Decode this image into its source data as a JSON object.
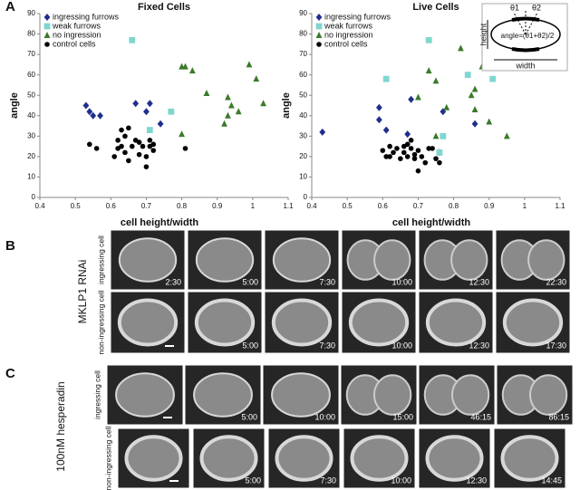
{
  "panel_labels": [
    "A",
    "B",
    "C"
  ],
  "chart_data": [
    {
      "type": "scatter",
      "title": "Fixed Cells",
      "xlabel": "cell height/width",
      "ylabel": "angle",
      "xlim": [
        0.4,
        1.1
      ],
      "ylim": [
        0,
        90
      ],
      "xticks": [
        0.4,
        0.5,
        0.6,
        0.7,
        0.8,
        0.9,
        1,
        1.1
      ],
      "yticks": [
        0,
        10,
        20,
        30,
        40,
        50,
        60,
        70,
        80,
        90
      ],
      "legend": "upper left",
      "series": [
        {
          "name": "ingressing furrows",
          "color": "#1f2f8c",
          "marker": "diamond",
          "x": [
            0.53,
            0.54,
            0.55,
            0.57,
            0.67,
            0.7,
            0.71,
            0.74
          ],
          "y": [
            45,
            42,
            40,
            40,
            46,
            42,
            46,
            36
          ]
        },
        {
          "name": "weak furrows",
          "color": "#7fd6d0",
          "marker": "square",
          "x": [
            0.66,
            0.71,
            0.77
          ],
          "y": [
            77,
            33,
            42
          ]
        },
        {
          "name": "no ingression",
          "color": "#3a7a2a",
          "marker": "triangle",
          "x": [
            0.8,
            0.81,
            0.8,
            0.83,
            0.87,
            0.92,
            0.93,
            0.93,
            0.94,
            0.96,
            0.99,
            1.01,
            1.03
          ],
          "y": [
            64,
            64,
            31,
            62,
            51,
            36,
            40,
            49,
            45,
            42,
            65,
            58,
            46
          ]
        },
        {
          "name": "control cells",
          "color": "#000000",
          "marker": "circle",
          "x": [
            0.54,
            0.56,
            0.61,
            0.62,
            0.62,
            0.63,
            0.63,
            0.64,
            0.64,
            0.65,
            0.65,
            0.66,
            0.67,
            0.68,
            0.68,
            0.69,
            0.7,
            0.7,
            0.71,
            0.71,
            0.72,
            0.72,
            0.81
          ],
          "y": [
            26,
            24,
            20,
            24,
            28,
            25,
            33,
            30,
            22,
            18,
            34,
            25,
            28,
            27,
            21,
            25,
            15,
            20,
            25,
            28,
            23,
            26,
            24
          ]
        }
      ]
    },
    {
      "type": "scatter",
      "title": "Live Cells",
      "xlabel": "cell height/width",
      "ylabel": "angle",
      "xlim": [
        0.4,
        1.1
      ],
      "ylim": [
        0,
        90
      ],
      "xticks": [
        0.4,
        0.5,
        0.6,
        0.7,
        0.8,
        0.9,
        1,
        1.1
      ],
      "yticks": [
        0,
        10,
        20,
        30,
        40,
        50,
        60,
        70,
        80,
        90
      ],
      "legend": "upper left",
      "annotations": [
        "θ1",
        "θ2",
        "height",
        "width",
        "angle=(θ1+θ2)/2"
      ],
      "series": [
        {
          "name": "ingressing furrows",
          "color": "#1f2f8c",
          "marker": "diamond",
          "x": [
            0.43,
            0.59,
            0.59,
            0.61,
            0.67,
            0.68,
            0.76,
            0.77,
            0.86
          ],
          "y": [
            32,
            44,
            38,
            33,
            31,
            48,
            22,
            42,
            36
          ]
        },
        {
          "name": "weak furrows",
          "color": "#7fd6d0",
          "marker": "square",
          "x": [
            0.61,
            0.73,
            0.76,
            0.77,
            0.84,
            0.91
          ],
          "y": [
            58,
            77,
            22,
            30,
            60,
            58
          ]
        },
        {
          "name": "no ingression",
          "color": "#3a7a2a",
          "marker": "triangle",
          "x": [
            0.7,
            0.73,
            0.75,
            0.75,
            0.78,
            0.82,
            0.85,
            0.86,
            0.86,
            0.88,
            0.9,
            0.95
          ],
          "y": [
            49,
            62,
            57,
            30,
            44,
            73,
            50,
            53,
            43,
            64,
            37,
            30
          ]
        },
        {
          "name": "control cells",
          "color": "#000000",
          "marker": "circle",
          "x": [
            0.6,
            0.61,
            0.62,
            0.62,
            0.63,
            0.64,
            0.65,
            0.66,
            0.66,
            0.67,
            0.67,
            0.68,
            0.68,
            0.69,
            0.69,
            0.7,
            0.7,
            0.71,
            0.72,
            0.73,
            0.74,
            0.75,
            0.76
          ],
          "y": [
            23,
            20,
            25,
            20,
            22,
            24,
            19,
            22,
            25,
            26,
            20,
            28,
            24,
            21,
            19,
            23,
            13,
            20,
            17,
            24,
            24,
            19,
            17
          ]
        }
      ]
    }
  ],
  "panel_b": {
    "condition": "MKLP1 RNAi",
    "rows": [
      {
        "label": "ingressing cell",
        "times": [
          "2:30",
          "5:00",
          "7:30",
          "10:00",
          "12:30",
          "22:30"
        ]
      },
      {
        "label": "non-ingressing cell",
        "times": [
          "5:00",
          "7:30",
          "10:00",
          "12:30",
          "17:30"
        ]
      }
    ]
  },
  "panel_c": {
    "condition": "100nM hesperadin",
    "rows": [
      {
        "label": "ingressing cell",
        "times": [
          "5:00",
          "10:00",
          "15:00",
          "46:15",
          "86:15"
        ]
      },
      {
        "label": "non-ingressing cell",
        "times": [
          "5:00",
          "7:30",
          "10:00",
          "12:30",
          "14:45"
        ]
      }
    ]
  }
}
